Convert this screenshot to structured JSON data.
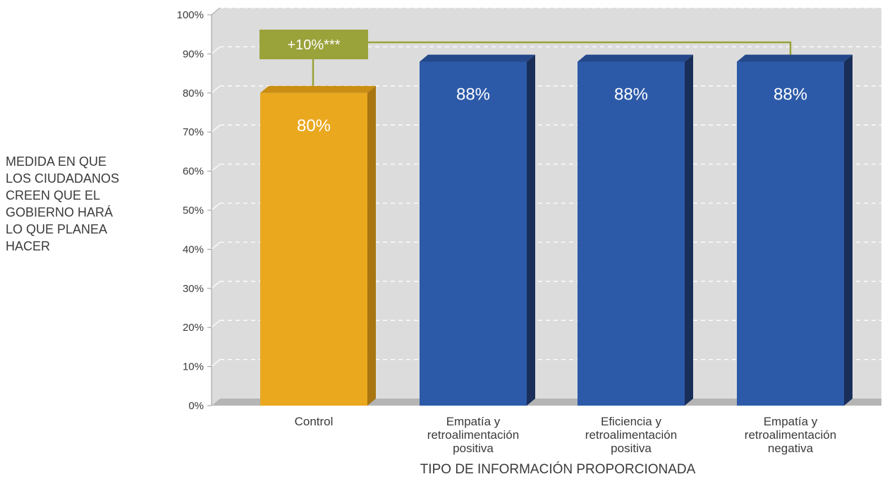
{
  "chart_data": {
    "type": "bar",
    "categories": [
      [
        "Control"
      ],
      [
        "Empatía y",
        "retroalimentación",
        "positiva"
      ],
      [
        "Eficiencia y",
        "retroalimentación",
        "positiva"
      ],
      [
        "Empatía y",
        "retroalimentación",
        "negativa"
      ]
    ],
    "values": [
      80,
      88,
      88,
      88
    ],
    "value_labels": [
      "80%",
      "88%",
      "88%",
      "88%"
    ],
    "xlabel": "TIPO DE INFORMACIÓN PROPORCIONADA",
    "ylabel_lines": [
      "MEDIDA EN QUE",
      "LOS CIUDADANOS",
      "CREEN QUE EL",
      "GOBIERNO HARÁ",
      "LO QUE PLANEA",
      "HACER"
    ],
    "ylim": [
      0,
      100
    ],
    "yticks": [
      0,
      10,
      20,
      30,
      40,
      50,
      60,
      70,
      80,
      90,
      100
    ],
    "ytick_labels": [
      "0%",
      "10%",
      "20%",
      "30%",
      "40%",
      "50%",
      "60%",
      "70%",
      "80%",
      "90%",
      "100%"
    ],
    "grid": true,
    "colors": {
      "control": "#EAA81F",
      "control_side": "#A87510",
      "control_top": "#C98E12",
      "treatment": "#2D5AA8",
      "treatment_side": "#1A2E5A",
      "treatment_top": "#24488A",
      "annotation": "#9AA23A",
      "plot_bg": "#DCDCDC",
      "floor": "#B5B5B5"
    },
    "annotation": {
      "text": "+10%***",
      "from_category": 0,
      "to_category": 3
    }
  }
}
